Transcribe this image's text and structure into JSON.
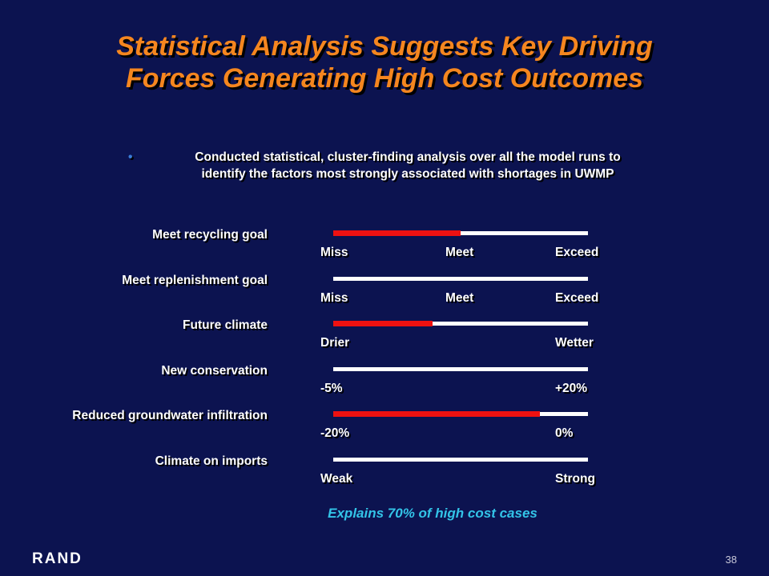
{
  "title": {
    "line1": "Statistical Analysis Suggests Key Driving",
    "line2": "Forces Generating High Cost Outcomes"
  },
  "bullet": {
    "line1": "Conducted statistical, cluster-finding analysis over all the model runs to",
    "line2": "identify the factors most strongly associated with shortages in UWMP"
  },
  "rows": [
    {
      "label": "Meet recycling goal",
      "ticks": [
        "Miss",
        "Meet",
        "Exceed"
      ],
      "red_fraction": 0.5
    },
    {
      "label": "Meet replenishment goal",
      "ticks": [
        "Miss",
        "Meet",
        "Exceed"
      ],
      "red_fraction": 0
    },
    {
      "label": "Future climate",
      "ticks": [
        "Drier",
        "Wetter"
      ],
      "red_fraction": 0.39
    },
    {
      "label": "New conservation",
      "ticks": [
        "-5%",
        "+20%"
      ],
      "red_fraction": 0
    },
    {
      "label": "Reduced groundwater infiltration",
      "ticks": [
        "-20%",
        "0%"
      ],
      "red_fraction": 0.81
    },
    {
      "label": "Climate on imports",
      "ticks": [
        "Weak",
        "Strong"
      ],
      "red_fraction": 0
    }
  ],
  "footnote": "Explains 70% of high cost cases",
  "logo": "RAND",
  "page_number": "38",
  "colors": {
    "background": "#0c1350",
    "title": "#f5861f",
    "bar": "#ffffff",
    "highlight": "#ee1111",
    "footnote": "#33c4e8"
  }
}
